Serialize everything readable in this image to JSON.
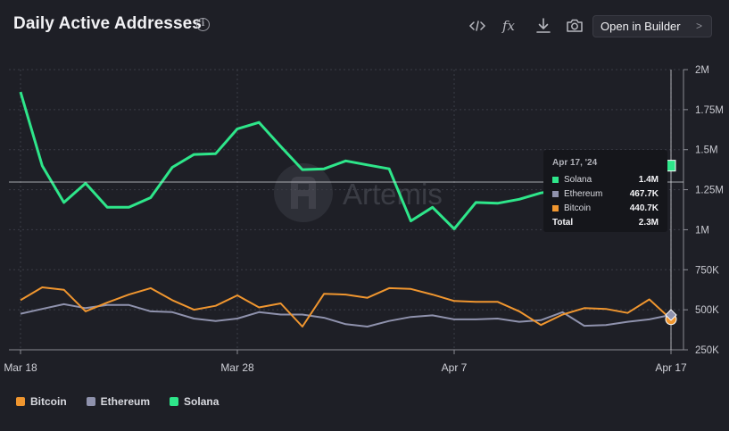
{
  "title": "Daily Active Addresses",
  "toolbar": {
    "builder_label": "Open in Builder",
    "icons": [
      "code-icon",
      "function-icon",
      "download-icon",
      "camera-icon"
    ]
  },
  "watermark": "Artemis",
  "legend": [
    {
      "name": "Bitcoin",
      "color": "#f0962f"
    },
    {
      "name": "Ethereum",
      "color": "#8f92ad"
    },
    {
      "name": "Solana",
      "color": "#2ee68a"
    }
  ],
  "tooltip": {
    "date": "Apr 17, '24",
    "rows": [
      {
        "name": "Solana",
        "value": "1.4M",
        "color": "#2ee68a"
      },
      {
        "name": "Ethereum",
        "value": "467.7K",
        "color": "#8f92ad"
      },
      {
        "name": "Bitcoin",
        "value": "440.7K",
        "color": "#f0962f"
      }
    ],
    "total_label": "Total",
    "total_value": "2.3M"
  },
  "chart_data": {
    "type": "line",
    "x_start": "Mar 18",
    "x_end": "Apr 17",
    "x_ticks": [
      "Mar 18",
      "Mar 28",
      "Apr 7",
      "Apr 17"
    ],
    "y_ticks": [
      "2M",
      "1.75M",
      "1.5M",
      "1.25M",
      "1M",
      "750K",
      "500K",
      "250K"
    ],
    "ylim": [
      250000,
      2000000
    ],
    "y_axis_side": "right",
    "grid": true,
    "legend_position": "bottom-left",
    "series": [
      {
        "name": "Solana",
        "color": "#2ee68a",
        "values": [
          1860000,
          1400000,
          1170000,
          1290000,
          1140000,
          1140000,
          1200000,
          1390000,
          1470000,
          1475000,
          1630000,
          1670000,
          1520000,
          1375000,
          1380000,
          1430000,
          1405000,
          1380000,
          1055000,
          1140000,
          1005000,
          1170000,
          1165000,
          1190000,
          1230000,
          1250000,
          1270000,
          1300000,
          1330000,
          1360000,
          1400000
        ]
      },
      {
        "name": "Ethereum",
        "color": "#8f92ad",
        "values": [
          475000,
          505000,
          535000,
          510000,
          530000,
          530000,
          490000,
          485000,
          445000,
          430000,
          445000,
          485000,
          470000,
          470000,
          450000,
          410000,
          395000,
          430000,
          455000,
          465000,
          440000,
          440000,
          445000,
          425000,
          435000,
          485000,
          400000,
          405000,
          425000,
          440000,
          467700
        ]
      },
      {
        "name": "Bitcoin",
        "color": "#f0962f",
        "values": [
          560000,
          640000,
          625000,
          490000,
          545000,
          595000,
          635000,
          560000,
          500000,
          525000,
          590000,
          515000,
          540000,
          395000,
          600000,
          595000,
          575000,
          635000,
          630000,
          595000,
          555000,
          550000,
          550000,
          490000,
          405000,
          470000,
          510000,
          505000,
          480000,
          565000,
          440700
        ]
      }
    ]
  }
}
